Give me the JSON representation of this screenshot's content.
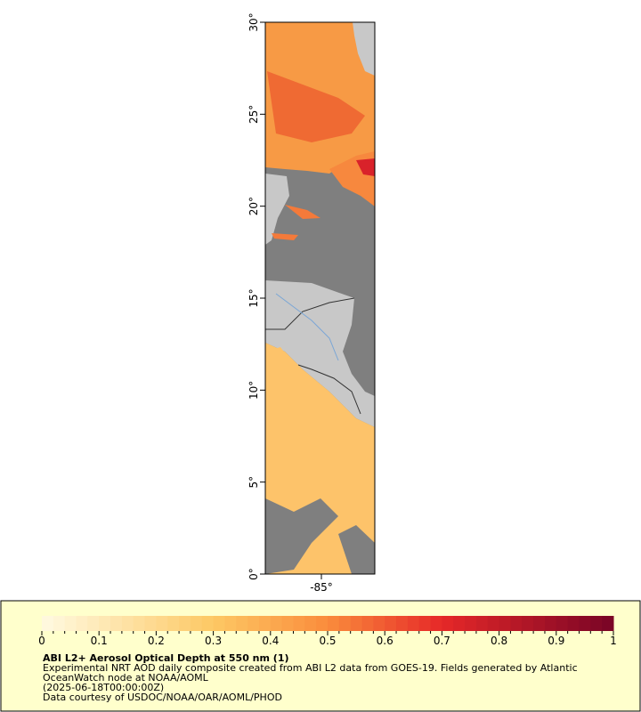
{
  "map": {
    "lat_ticks": [
      "0°",
      "5°",
      "10°",
      "15°",
      "20°",
      "25°",
      "30°"
    ],
    "lon_ticks": [
      "-85°"
    ],
    "colorbar_ticks": [
      "0",
      "0.1",
      "0.2",
      "0.3",
      "0.4",
      "0.5",
      "0.6",
      "0.7",
      "0.8",
      "0.9",
      "1"
    ]
  },
  "legend": {
    "title": "ABI L2+ Aerosol Optical Depth at 550 nm (1)",
    "lines": [
      "Experimental NRT AOD daily composite created from ABI L2 data from GOES-19. Fields generated by Atlantic",
      "OceanWatch node at NOAA/AOML",
      "(2025-06-18T00:00:00Z)",
      "Data courtesy of USDOC/NOAA/OAR/AOML/PHOD"
    ]
  }
}
